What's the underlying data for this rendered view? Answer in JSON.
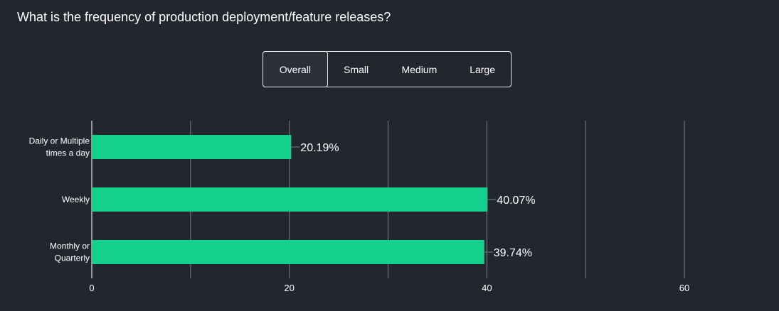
{
  "question": "What is the frequency of production deployment/feature releases?",
  "tabs": [
    {
      "label": "Overall",
      "active": true
    },
    {
      "label": "Small",
      "active": false
    },
    {
      "label": "Medium",
      "active": false
    },
    {
      "label": "Large",
      "active": false
    }
  ],
  "colors": {
    "bar": "#13d08d",
    "grid": "#7a7d85",
    "background": "#23262f"
  },
  "chart_data": {
    "type": "bar",
    "orientation": "horizontal",
    "categories": [
      [
        "Daily or Multiple",
        "times a day"
      ],
      [
        "Weekly"
      ],
      [
        "Monthly or",
        "Quarterly"
      ]
    ],
    "values": [
      20.19,
      40.07,
      39.74
    ],
    "value_labels": [
      "20.19%",
      "40.07%",
      "39.74%"
    ],
    "xlim": [
      0,
      60
    ],
    "xticks": [
      0,
      20,
      40,
      60
    ],
    "grid": true
  }
}
